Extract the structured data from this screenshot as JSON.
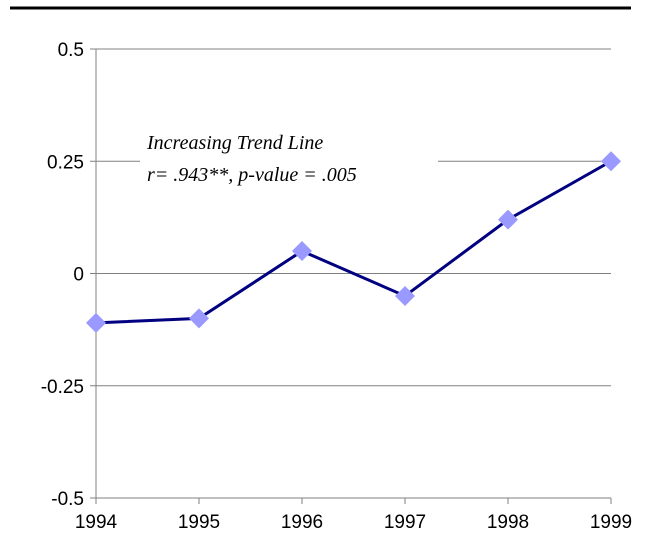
{
  "chart_data": {
    "type": "line",
    "x": [
      1994,
      1995,
      1996,
      1997,
      1998,
      1999
    ],
    "series": [
      {
        "color": "#000080",
        "marker_color": "#9999ff",
        "values": [
          -0.11,
          -0.1,
          0.05,
          -0.05,
          0.12,
          0.25
        ]
      }
    ],
    "xlim": [
      1994,
      1999
    ],
    "xticks": [
      1994,
      1995,
      1996,
      1997,
      1998,
      1999
    ],
    "ylim": [
      -0.5,
      0.5
    ],
    "yticks": [
      -0.5,
      -0.25,
      0,
      0.25,
      0.5
    ],
    "grid": true,
    "annotations": [
      "Increasing Trend Line",
      "r= .943**, p-value = .005"
    ]
  }
}
